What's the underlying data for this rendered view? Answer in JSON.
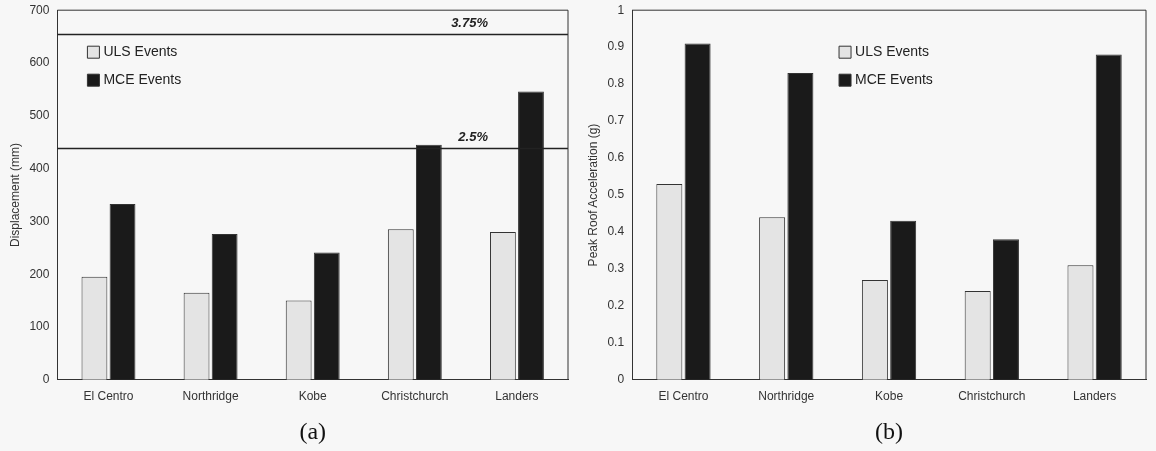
{
  "chart_data": [
    {
      "type": "bar",
      "xlabel": "(a)",
      "ylabel": "Displacement (mm)",
      "categories": [
        "El Centro",
        "Northridge",
        "Kobe",
        "Christchurch",
        "Landers"
      ],
      "series": [
        {
          "name": "ULS Events",
          "color": "#e4e4e4",
          "values": [
            195,
            165,
            150,
            285,
            280
          ]
        },
        {
          "name": "MCE Events",
          "color": "#1a1a1a",
          "values": [
            333,
            276,
            241,
            445,
            546
          ]
        }
      ],
      "ylim": [
        0,
        700
      ],
      "yticks": [
        0,
        100,
        200,
        300,
        400,
        500,
        600,
        700
      ],
      "grid": false,
      "legend": "top left",
      "ref_lines": [
        {
          "axis": "y",
          "value": 654,
          "color": "#222222"
        },
        {
          "axis": "y",
          "value": 438,
          "color": "#222222"
        }
      ],
      "annotations": [
        "3.75%",
        "2.5%"
      ]
    },
    {
      "type": "bar",
      "xlabel": "(b)",
      "ylabel": "Peak Roof Acceleration (g)",
      "categories": [
        "El Centro",
        "Northridge",
        "Kobe",
        "Christchurch",
        "Landers"
      ],
      "series": [
        {
          "name": "ULS Events",
          "color": "#e4e4e4",
          "values": [
            0.53,
            0.44,
            0.27,
            0.24,
            0.31
          ]
        },
        {
          "name": "MCE Events",
          "color": "#1a1a1a",
          "values": [
            0.91,
            0.83,
            0.43,
            0.38,
            0.88
          ]
        }
      ],
      "ylim": [
        0,
        1
      ],
      "yticks": [
        0,
        0.1,
        0.2,
        0.3,
        0.4,
        0.5,
        0.6,
        0.7,
        0.8,
        0.9,
        1
      ],
      "grid": false,
      "legend": "top"
    }
  ]
}
